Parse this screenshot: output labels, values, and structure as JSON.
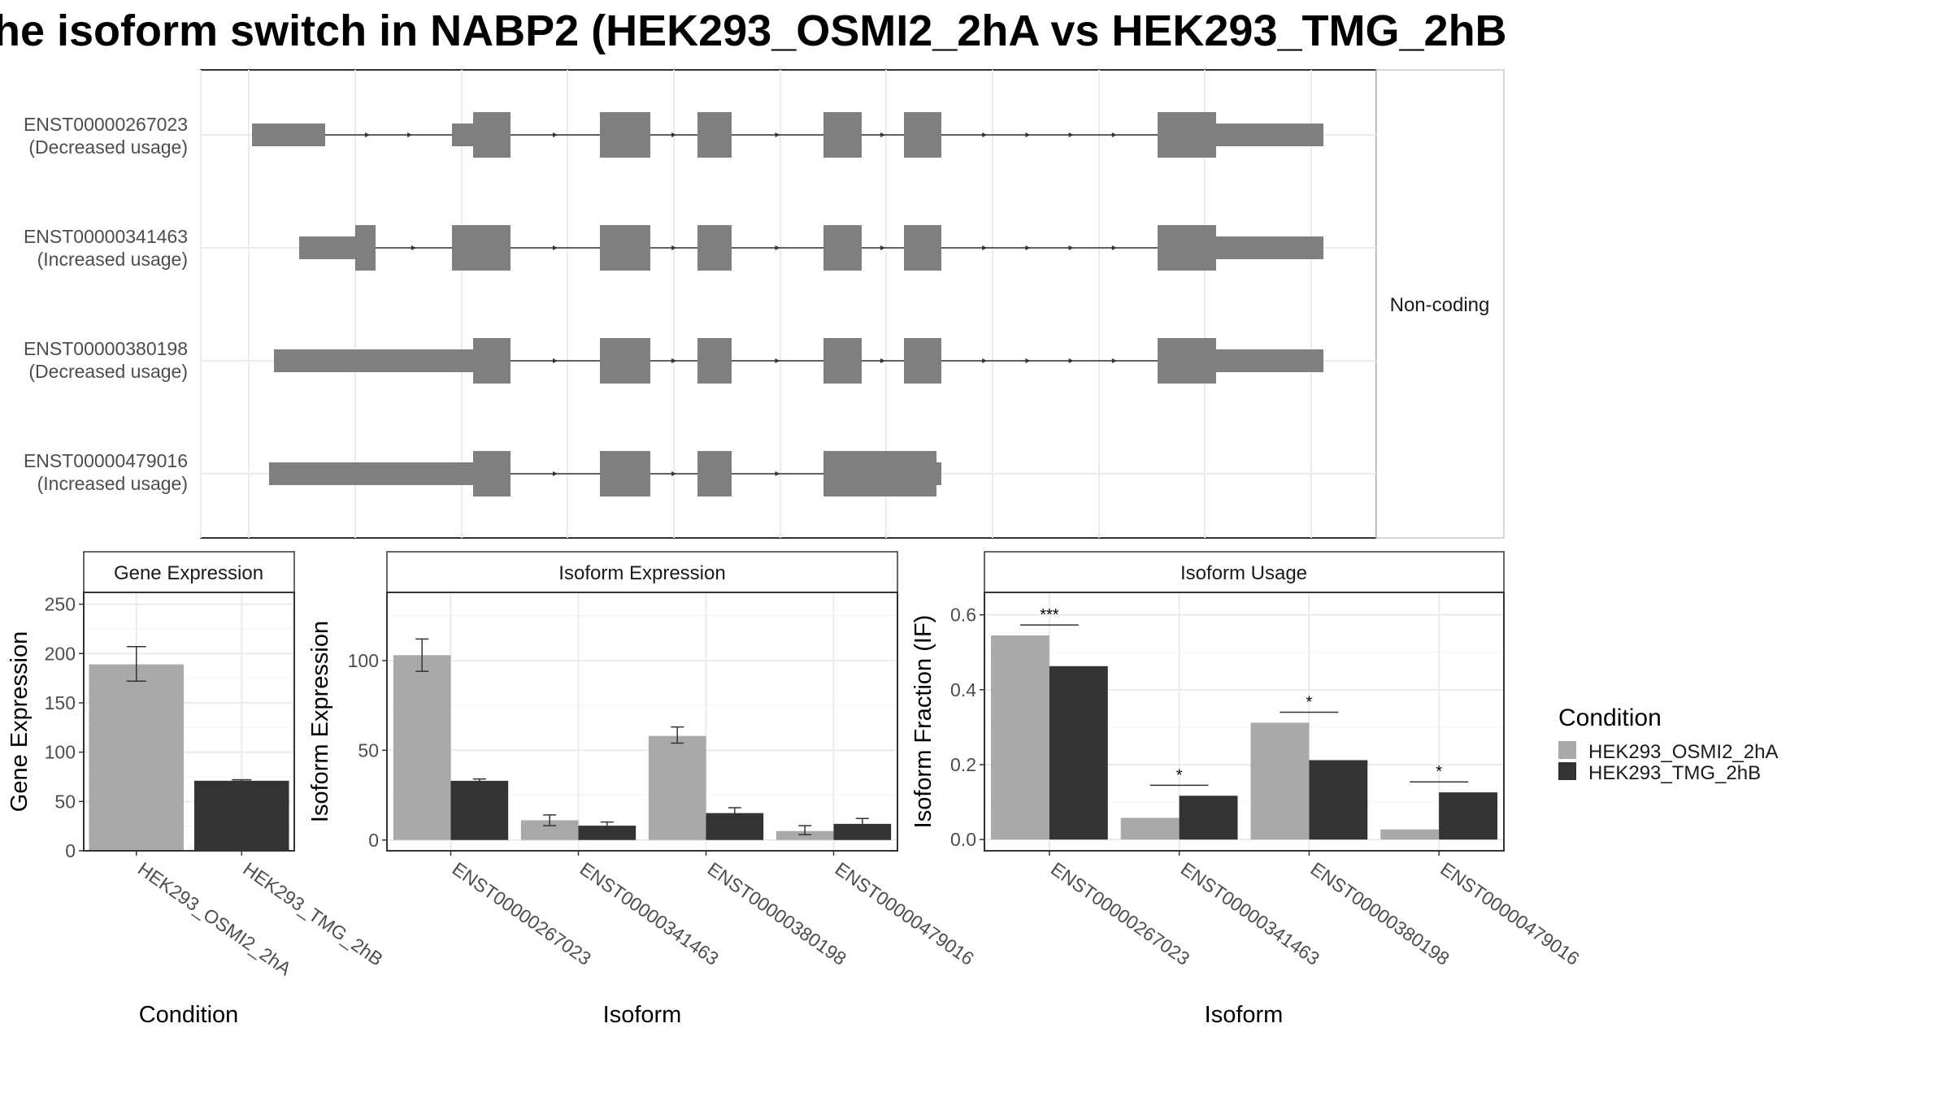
{
  "title": "he isoform switch in NABP2 (HEK293_OSMI2_2hA vs HEK293_TMG_2hB",
  "colors": {
    "exon": "#7f7f7f",
    "cond_a": "#a9a9a9",
    "cond_b": "#333333",
    "grid": "#ebebeb",
    "panel_border": "#333333",
    "strip_border": "#333333"
  },
  "transcript_panel": {
    "strip_label": "Non-coding",
    "transcripts": [
      {
        "id": "ENST00000267023",
        "note": "(Decreased usage)"
      },
      {
        "id": "ENST00000341463",
        "note": "(Increased usage)"
      },
      {
        "id": "ENST00000380198",
        "note": "(Decreased usage)"
      },
      {
        "id": "ENST00000479016",
        "note": "(Increased usage)"
      }
    ]
  },
  "chart_data": [
    {
      "type": "bar",
      "title": "Gene Expression",
      "xlabel": "Condition",
      "ylabel": "Gene Expression",
      "categories": [
        "HEK293_OSMI2_2hA",
        "HEK293_TMG_2hB"
      ],
      "values": [
        189,
        71
      ],
      "error": [
        [
          172,
          207
        ],
        [
          70,
          72
        ]
      ],
      "ylim": [
        0,
        262
      ],
      "yticks": [
        0,
        50,
        100,
        150,
        200,
        250
      ]
    },
    {
      "type": "bar",
      "title": "Isoform Expression",
      "xlabel": "Isoform",
      "ylabel": "Isoform Expression",
      "categories": [
        "ENST00000267023",
        "ENST00000341463",
        "ENST00000380198",
        "ENST00000479016"
      ],
      "series": [
        {
          "name": "HEK293_OSMI2_2hA",
          "values": [
            103,
            11,
            58,
            5
          ],
          "error": [
            [
              94,
              112
            ],
            [
              8,
              14
            ],
            [
              54,
              63
            ],
            [
              3,
              8
            ]
          ]
        },
        {
          "name": "HEK293_TMG_2hB",
          "values": [
            33,
            8,
            15,
            9
          ],
          "error": [
            [
              32,
              34
            ],
            [
              6,
              10
            ],
            [
              12,
              18
            ],
            [
              7,
              12
            ]
          ]
        }
      ],
      "ylim": [
        -6,
        138
      ],
      "yticks": [
        0,
        50,
        100
      ]
    },
    {
      "type": "bar",
      "title": "Isoform Usage",
      "xlabel": "Isoform",
      "ylabel": "Isoform Fraction (IF)",
      "categories": [
        "ENST00000267023",
        "ENST00000341463",
        "ENST00000380198",
        "ENST00000479016"
      ],
      "series": [
        {
          "name": "HEK293_OSMI2_2hA",
          "values": [
            0.545,
            0.058,
            0.312,
            0.027
          ]
        },
        {
          "name": "HEK293_TMG_2hB",
          "values": [
            0.463,
            0.117,
            0.212,
            0.126
          ]
        }
      ],
      "significance": [
        "***",
        "*",
        "*",
        "*"
      ],
      "ylim": [
        -0.03,
        0.66
      ],
      "yticks": [
        0.0,
        0.2,
        0.4,
        0.6
      ],
      "ytick_labels": [
        "0.0",
        "0.2",
        "0.4",
        "0.6"
      ]
    }
  ],
  "legend": {
    "title": "Condition",
    "items": [
      "HEK293_OSMI2_2hA",
      "HEK293_TMG_2hB"
    ]
  }
}
